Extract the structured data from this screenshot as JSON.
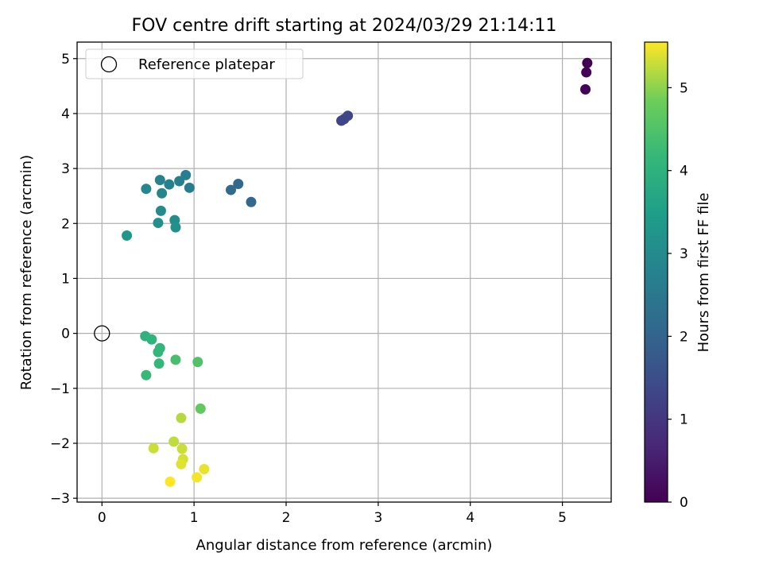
{
  "chart_data": {
    "type": "scatter",
    "title": "FOV centre drift starting at 2024/03/29 21:14:11",
    "xlabel": "Angular distance from reference (arcmin)",
    "ylabel": "Rotation from reference (arcmin)",
    "xlim": [
      -0.27,
      5.53
    ],
    "ylim": [
      -3.07,
      5.3
    ],
    "xticks": [
      0,
      1,
      2,
      3,
      4,
      5
    ],
    "xtick_labels": [
      "0",
      "1",
      "2",
      "3",
      "4",
      "5"
    ],
    "yticks": [
      -3,
      -2,
      -1,
      0,
      1,
      2,
      3,
      4,
      5
    ],
    "ytick_labels": [
      "−3",
      "−2",
      "−1",
      "0",
      "1",
      "2",
      "3",
      "4",
      "5"
    ],
    "grid": true,
    "legend": {
      "position": "top-left",
      "entries": [
        "Reference platepar"
      ]
    },
    "reference_point": {
      "x": 0,
      "y": 0,
      "label": "Reference platepar",
      "marker": "open-circle"
    },
    "colorbar": {
      "label": "Hours from first FF file",
      "colormap": "viridis",
      "range": [
        0,
        5.55
      ],
      "ticks": [
        0,
        1,
        2,
        3,
        4,
        5
      ],
      "tick_labels": [
        "0",
        "1",
        "2",
        "3",
        "4",
        "5"
      ]
    },
    "points": [
      {
        "x": 5.27,
        "y": 4.92,
        "c": 0.0
      },
      {
        "x": 5.26,
        "y": 4.75,
        "c": 0.03
      },
      {
        "x": 5.25,
        "y": 4.44,
        "c": 0.05
      },
      {
        "x": 2.6,
        "y": 3.87,
        "c": 1.3
      },
      {
        "x": 2.63,
        "y": 3.9,
        "c": 1.32
      },
      {
        "x": 2.67,
        "y": 3.96,
        "c": 1.35
      },
      {
        "x": 1.62,
        "y": 2.39,
        "c": 2.05
      },
      {
        "x": 1.48,
        "y": 2.72,
        "c": 2.1
      },
      {
        "x": 1.4,
        "y": 2.61,
        "c": 2.15
      },
      {
        "x": 0.95,
        "y": 2.65,
        "c": 2.6
      },
      {
        "x": 0.91,
        "y": 2.88,
        "c": 2.65
      },
      {
        "x": 0.84,
        "y": 2.77,
        "c": 2.7
      },
      {
        "x": 0.73,
        "y": 2.71,
        "c": 2.75
      },
      {
        "x": 0.63,
        "y": 2.79,
        "c": 2.8
      },
      {
        "x": 0.65,
        "y": 2.55,
        "c": 2.85
      },
      {
        "x": 0.48,
        "y": 2.63,
        "c": 2.9
      },
      {
        "x": 0.64,
        "y": 2.23,
        "c": 3.0
      },
      {
        "x": 0.79,
        "y": 2.06,
        "c": 3.05
      },
      {
        "x": 0.61,
        "y": 2.01,
        "c": 3.1
      },
      {
        "x": 0.8,
        "y": 1.93,
        "c": 3.15
      },
      {
        "x": 0.27,
        "y": 1.78,
        "c": 3.3
      },
      {
        "x": 0.47,
        "y": -0.05,
        "c": 4.0
      },
      {
        "x": 0.54,
        "y": -0.11,
        "c": 4.05
      },
      {
        "x": 0.63,
        "y": -0.27,
        "c": 4.1
      },
      {
        "x": 0.61,
        "y": -0.34,
        "c": 4.12
      },
      {
        "x": 0.62,
        "y": -0.55,
        "c": 4.15
      },
      {
        "x": 0.48,
        "y": -0.76,
        "c": 4.2
      },
      {
        "x": 0.8,
        "y": -0.48,
        "c": 4.4
      },
      {
        "x": 1.04,
        "y": -0.52,
        "c": 4.5
      },
      {
        "x": 1.07,
        "y": -1.37,
        "c": 4.7
      },
      {
        "x": 0.86,
        "y": -1.54,
        "c": 5.2
      },
      {
        "x": 0.78,
        "y": -1.97,
        "c": 5.25
      },
      {
        "x": 0.56,
        "y": -2.09,
        "c": 5.3
      },
      {
        "x": 0.87,
        "y": -2.1,
        "c": 5.3
      },
      {
        "x": 0.88,
        "y": -2.29,
        "c": 5.35
      },
      {
        "x": 0.86,
        "y": -2.38,
        "c": 5.4
      },
      {
        "x": 1.11,
        "y": -2.47,
        "c": 5.45
      },
      {
        "x": 1.03,
        "y": -2.62,
        "c": 5.5
      },
      {
        "x": 0.74,
        "y": -2.7,
        "c": 5.55
      }
    ]
  }
}
